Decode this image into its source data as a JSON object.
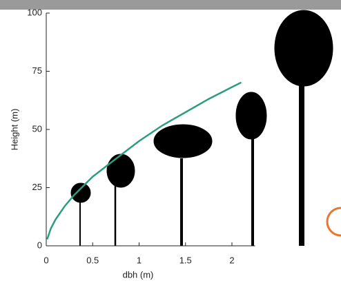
{
  "chart_data": {
    "type": "line",
    "x_label": "dbh (m)",
    "y_label": "Height (m)",
    "x": [
      0.01,
      0.05,
      0.1,
      0.2,
      0.3,
      0.5,
      0.75,
      1,
      1.25,
      1.5,
      1.75,
      2,
      2.1
    ],
    "series": [
      {
        "color": "#2a9d7f",
        "values": [
          2.8,
          7.5,
          11.3,
          17.1,
          21.8,
          29.7,
          37.4,
          45,
          51.7,
          57.4,
          63.1,
          68.2,
          70.2
        ]
      }
    ],
    "xlim": [
      0,
      2.25
    ],
    "ylim": [
      0,
      100
    ],
    "xticks": [
      0,
      0.5,
      1,
      1.5,
      2
    ],
    "yticks": [
      0,
      25,
      50,
      75,
      100
    ]
  }
}
